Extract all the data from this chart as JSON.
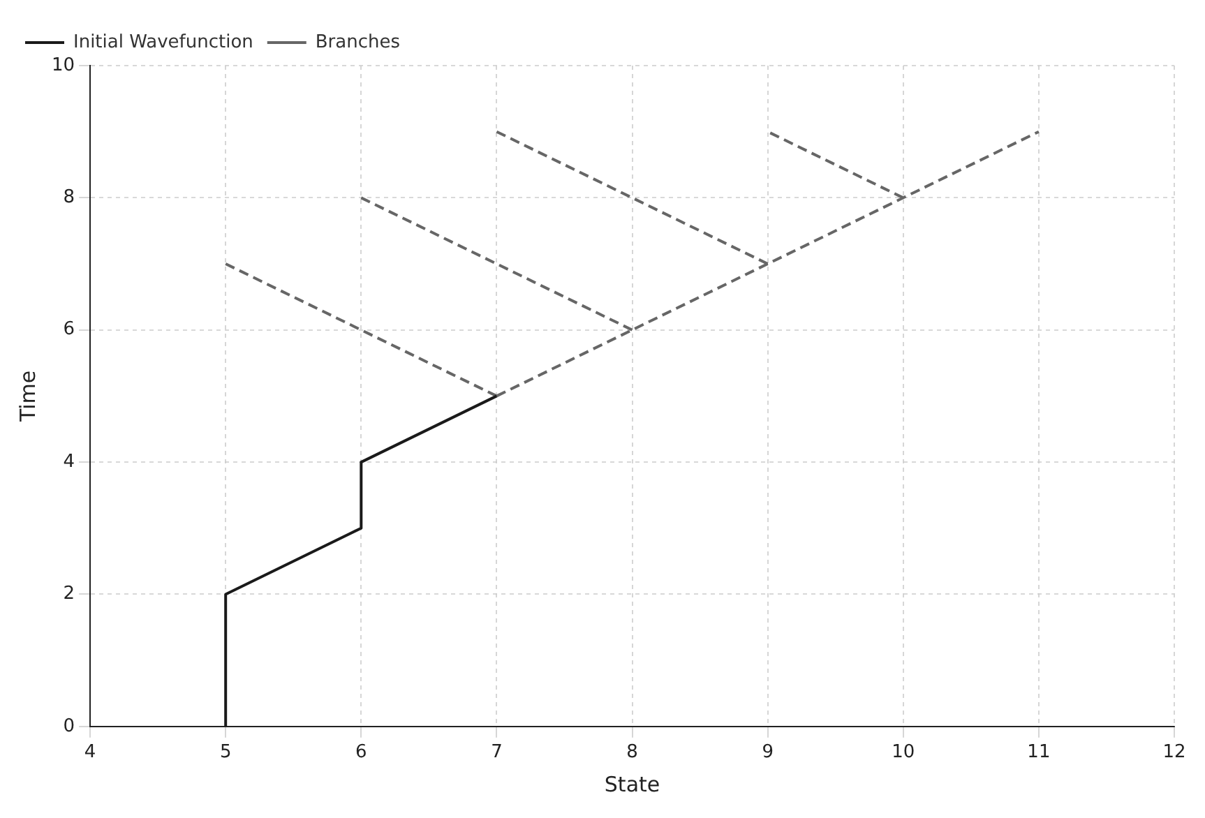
{
  "chart_data": {
    "type": "line",
    "xlabel": "State",
    "ylabel": "Time",
    "xlim": [
      4,
      12
    ],
    "xticks": [
      4,
      5,
      6,
      7,
      8,
      9,
      10,
      11,
      12
    ],
    "ylim": [
      0,
      10
    ],
    "yticks": [
      0,
      2,
      4,
      6,
      8,
      10
    ],
    "grid": true,
    "legend": "top left",
    "marker": "none",
    "series": [
      {
        "name": "Initial Wavefunction",
        "color": "#1a1a1a",
        "line_style": "solid",
        "x": [
          5,
          5,
          6,
          6,
          7
        ],
        "values": [
          0,
          2,
          3,
          4,
          5
        ]
      },
      {
        "name": "Branches",
        "color": "#666666",
        "line_style": "dashed",
        "x": [
          7,
          11
        ],
        "values": [
          5,
          9
        ]
      },
      {
        "color": "#666666",
        "line_style": "dashed",
        "x": [
          7,
          5
        ],
        "values": [
          5,
          7
        ]
      },
      {
        "color": "#666666",
        "line_style": "dashed",
        "x": [
          8,
          6
        ],
        "values": [
          6,
          8
        ]
      },
      {
        "color": "#666666",
        "line_style": "dashed",
        "x": [
          9,
          7
        ],
        "values": [
          7,
          9
        ]
      },
      {
        "color": "#666666",
        "line_style": "dashed",
        "x": [
          10,
          9
        ],
        "values": [
          8,
          9
        ]
      }
    ]
  }
}
